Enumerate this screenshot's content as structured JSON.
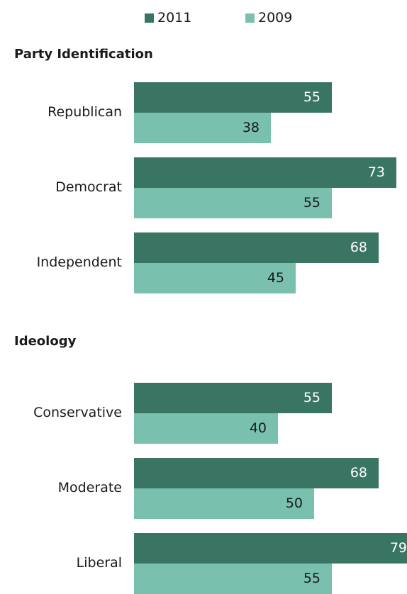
{
  "legend": [
    {
      "label": "2011",
      "color": "#3a7563"
    },
    {
      "label": "2009",
      "color": "#79c0ae"
    }
  ],
  "chart_data": {
    "type": "bar",
    "orientation": "horizontal",
    "series": [
      {
        "name": "2011",
        "color": "#3a7563"
      },
      {
        "name": "2009",
        "color": "#79c0ae"
      }
    ],
    "groups": [
      {
        "title": "Party Identification",
        "categories": [
          {
            "label": "Republican",
            "values": [
              55,
              38
            ]
          },
          {
            "label": "Democrat",
            "values": [
              73,
              55
            ]
          },
          {
            "label": "Independent",
            "values": [
              68,
              45
            ]
          }
        ]
      },
      {
        "title": "Ideology",
        "categories": [
          {
            "label": "Conservative",
            "values": [
              55,
              40
            ]
          },
          {
            "label": "Moderate",
            "values": [
              68,
              50
            ]
          },
          {
            "label": "Liberal",
            "values": [
              79,
              55
            ]
          }
        ]
      }
    ]
  }
}
